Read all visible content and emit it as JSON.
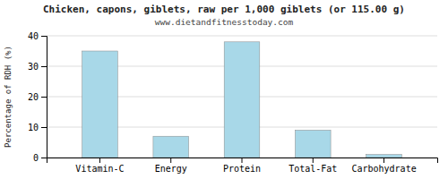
{
  "chart_data": {
    "type": "bar",
    "title": "Chicken, capons, giblets, raw per 1,000 giblets (or 115.00 g)",
    "subtitle": "www.dietandfitnesstoday.com",
    "ylabel": "Percentage of RDH (%)",
    "categories": [
      "Vitamin-C",
      "Energy",
      "Protein",
      "Total-Fat",
      "Carbohydrate"
    ],
    "values": [
      35.0,
      7.0,
      38.0,
      9.0,
      1.0
    ],
    "color": "#a8d8e8",
    "ylim": [
      0,
      40
    ],
    "yticks": [
      0,
      10,
      20,
      30,
      40
    ],
    "grid": true
  }
}
